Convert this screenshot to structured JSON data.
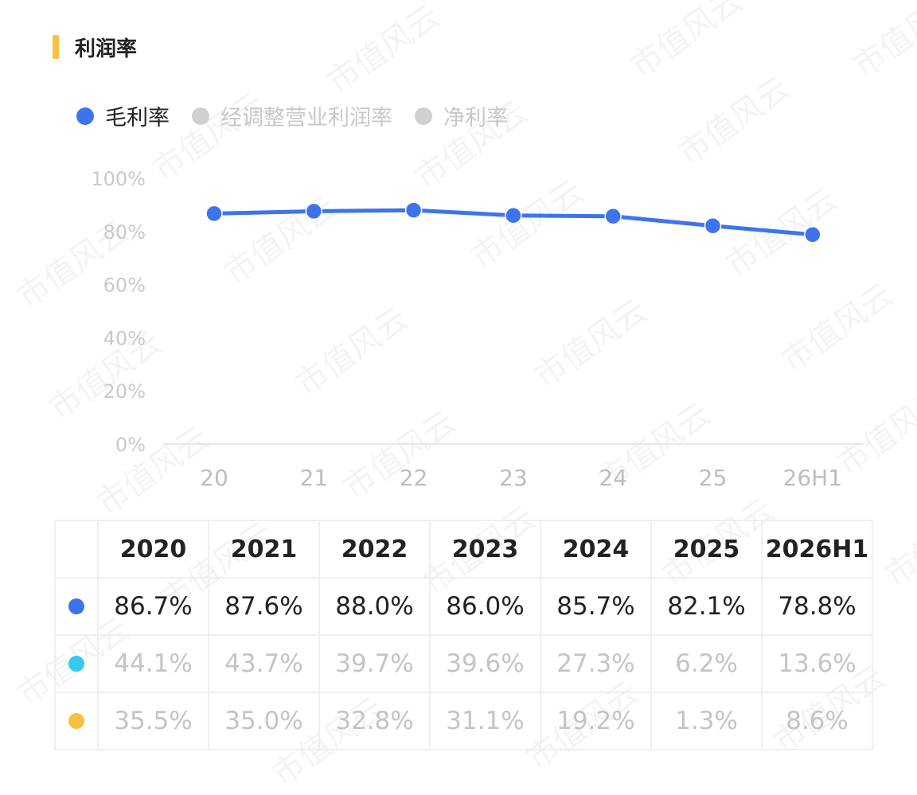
{
  "header": {
    "title": "利润率",
    "accent_color": "#f6c142"
  },
  "watermark": "市值风云",
  "legend": [
    {
      "label": "毛利率",
      "color": "#3d74ec",
      "active": true
    },
    {
      "label": "经调整营业利润率",
      "color": "#d0d0d0",
      "active": false
    },
    {
      "label": "净利率",
      "color": "#d0d0d0",
      "active": false
    }
  ],
  "chart_data": {
    "type": "line",
    "categories": [
      "20",
      "21",
      "22",
      "23",
      "24",
      "25",
      "26H1"
    ],
    "series": [
      {
        "name": "毛利率",
        "values": [
          86.7,
          87.6,
          88.0,
          86.0,
          85.7,
          82.1,
          78.8
        ],
        "color": "#3d74ec"
      }
    ],
    "y_ticks": [
      "0%",
      "20%",
      "40%",
      "60%",
      "80%",
      "100%"
    ],
    "ylim": [
      0,
      100
    ],
    "grid": false
  },
  "table": {
    "years": [
      "2020",
      "2021",
      "2022",
      "2023",
      "2024",
      "2025",
      "2026H1"
    ],
    "rows": [
      {
        "color": "#3d74ec",
        "text_color": "#222222",
        "values": [
          "86.7%",
          "87.6%",
          "88.0%",
          "86.0%",
          "85.7%",
          "82.1%",
          "78.8%"
        ]
      },
      {
        "color": "#35c9f2",
        "text_color": "#c4c4c4",
        "values": [
          "44.1%",
          "43.7%",
          "39.7%",
          "39.6%",
          "27.3%",
          "6.2%",
          "13.6%"
        ]
      },
      {
        "color": "#f6c142",
        "text_color": "#c4c4c4",
        "values": [
          "35.5%",
          "35.0%",
          "32.8%",
          "31.1%",
          "19.2%",
          "1.3%",
          "8.6%"
        ]
      }
    ]
  }
}
